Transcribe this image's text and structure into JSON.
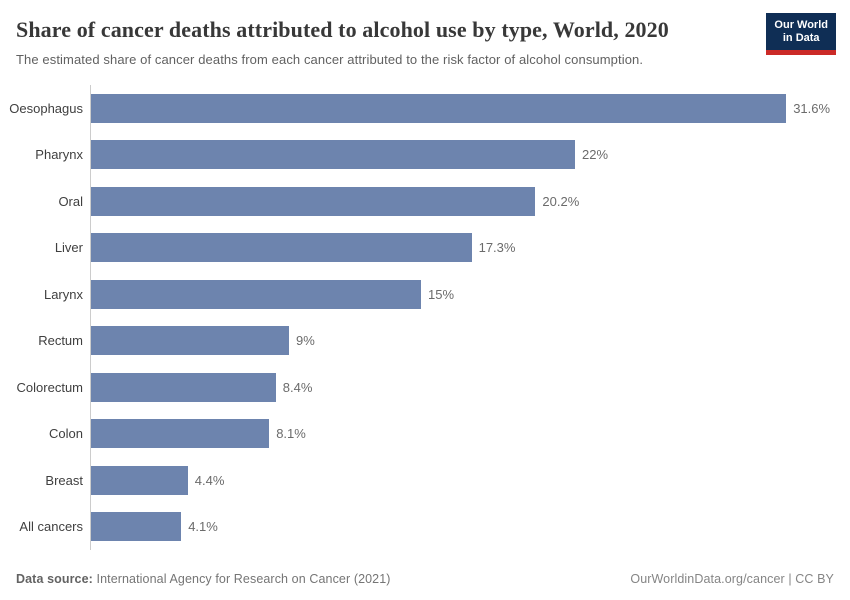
{
  "header": {
    "title": "Share of cancer deaths attributed to alcohol use by type, World, 2020",
    "subtitle": "The estimated share of cancer deaths from each cancer attributed to the risk factor of alcohol consumption.",
    "logo": {
      "line1": "Our World",
      "line2": "in Data",
      "bg_color": "#0f2e55",
      "accent_color": "#cb2a27"
    }
  },
  "chart_data": {
    "type": "bar",
    "orientation": "horizontal",
    "title": "Share of cancer deaths attributed to alcohol use by type, World, 2020",
    "xlabel": "",
    "ylabel": "",
    "xlim": [
      0,
      34.5
    ],
    "grid": false,
    "legend": "none",
    "bar_color": "#6d84ae",
    "axis_color": "#cccccc",
    "categories": [
      "Oesophagus",
      "Pharynx",
      "Oral",
      "Liver",
      "Larynx",
      "Rectum",
      "Colorectum",
      "Colon",
      "Breast",
      "All cancers"
    ],
    "values": [
      31.6,
      22,
      20.2,
      17.3,
      15,
      9,
      8.4,
      8.1,
      4.4,
      4.1
    ],
    "value_labels": [
      "31.6%",
      "22%",
      "20.2%",
      "17.3%",
      "15%",
      "9%",
      "8.4%",
      "8.1%",
      "4.4%",
      "4.1%"
    ]
  },
  "footer": {
    "source_label": "Data source:",
    "source_text": " International Agency for Research on Cancer (2021)",
    "credit": "OurWorldinData.org/cancer | CC BY"
  }
}
